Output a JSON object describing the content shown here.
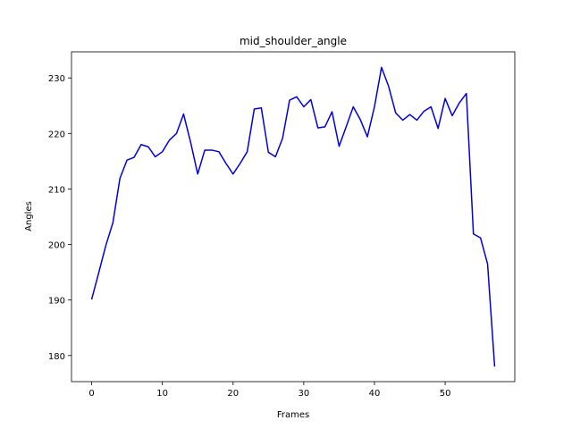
{
  "chart_data": {
    "type": "line",
    "title": "mid_shoulder_angle",
    "xlabel": "Frames",
    "ylabel": "Angles",
    "xlim": [
      -2.85,
      59.85
    ],
    "ylim": [
      175.3,
      234.7
    ],
    "xticks": [
      0,
      10,
      20,
      30,
      40,
      50
    ],
    "yticks": [
      180,
      190,
      200,
      210,
      220,
      230
    ],
    "grid": false,
    "legend": "none",
    "series": [
      {
        "color": "#0000dd",
        "x": [
          0,
          1,
          2,
          3,
          4,
          5,
          6,
          7,
          8,
          9,
          10,
          11,
          12,
          13,
          14,
          15,
          16,
          17,
          18,
          19,
          20,
          21,
          22,
          23,
          24,
          25,
          26,
          27,
          28,
          29,
          30,
          31,
          32,
          33,
          34,
          35,
          36,
          37,
          38,
          39,
          40,
          41,
          42,
          43,
          44,
          45,
          46,
          47,
          48,
          49,
          50,
          51,
          52,
          53,
          54,
          55,
          56,
          57
        ],
        "values": [
          190.1,
          194.9,
          199.8,
          203.9,
          211.9,
          215.2,
          215.7,
          218.0,
          217.6,
          215.8,
          216.7,
          218.8,
          220.0,
          223.5,
          218.4,
          212.7,
          217.0,
          217.0,
          216.7,
          214.6,
          212.7,
          214.6,
          216.7,
          224.4,
          224.6,
          216.6,
          215.8,
          219.1,
          226.0,
          226.6,
          224.8,
          226.1,
          221.0,
          221.2,
          223.9,
          217.7,
          221.2,
          224.8,
          222.5,
          219.4,
          224.8,
          231.9,
          228.5,
          223.7,
          222.4,
          223.4,
          222.4,
          224.0,
          224.8,
          220.9,
          226.3,
          223.2,
          225.5,
          227.2,
          201.9,
          201.2,
          196.5,
          178.0
        ]
      }
    ]
  }
}
